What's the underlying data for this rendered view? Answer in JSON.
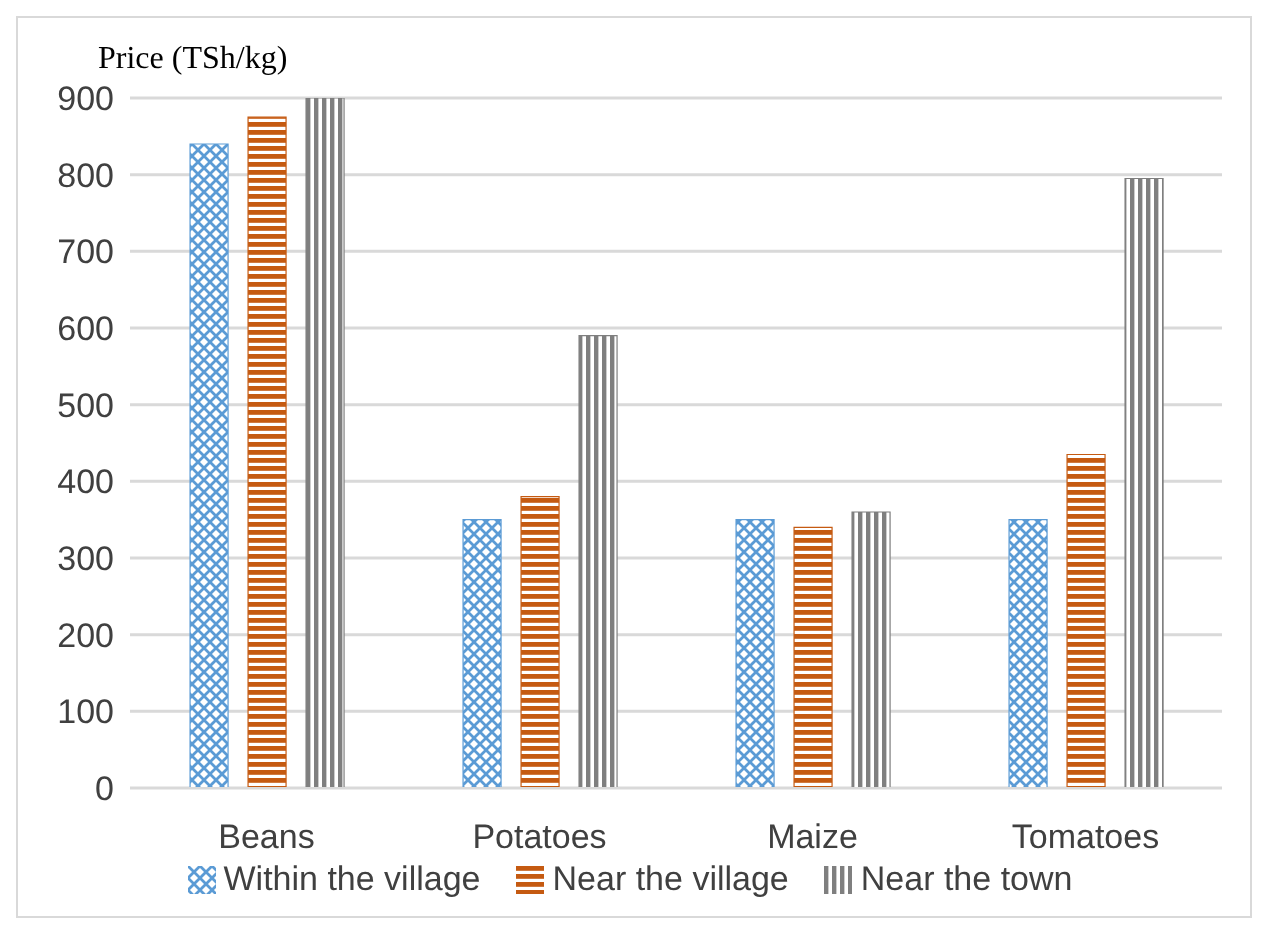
{
  "chart_data": {
    "type": "bar",
    "ylabel": "Price (TSh/kg)",
    "categories": [
      "Beans",
      "Potatoes",
      "Maize",
      "Tomatoes"
    ],
    "series": [
      {
        "name": "Within the village",
        "color": "#5b9bd5",
        "values": [
          840,
          350,
          350,
          350
        ]
      },
      {
        "name": "Near the village",
        "color": "#c55a11",
        "values": [
          875,
          380,
          340,
          435
        ]
      },
      {
        "name": "Near the town",
        "color": "#7f7f7f",
        "values": [
          900,
          590,
          360,
          795
        ]
      }
    ],
    "ylim": [
      0,
      900
    ],
    "yticks": [
      0,
      100,
      200,
      300,
      400,
      500,
      600,
      700,
      800,
      900
    ],
    "grid": "y",
    "legend": "bottom"
  }
}
